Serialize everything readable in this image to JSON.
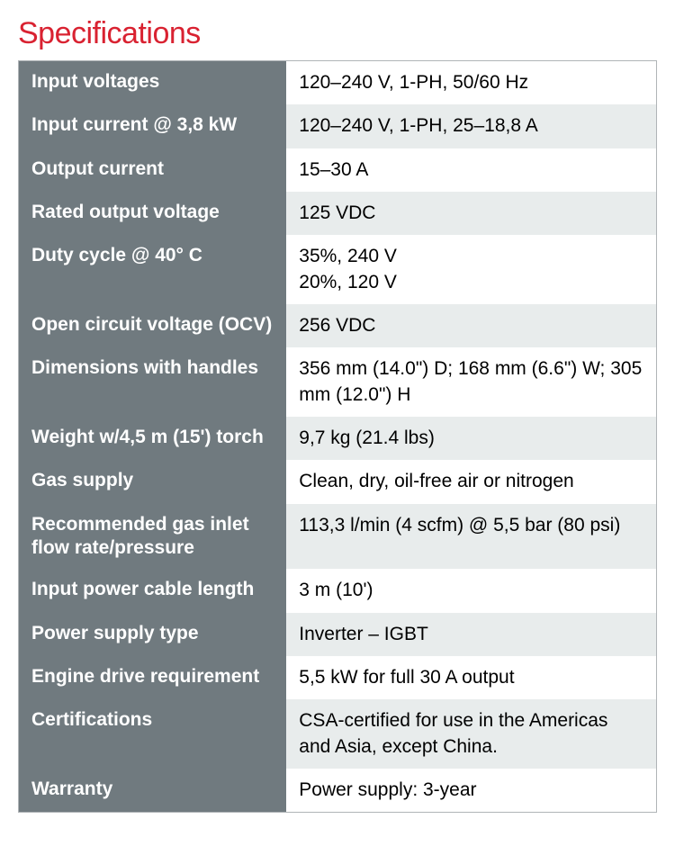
{
  "title": "Specifications",
  "colors": {
    "title": "#d92231",
    "label_bg": "#707a7f",
    "label_text": "#ffffff",
    "value_text": "#000000",
    "row_odd_bg": "#ffffff",
    "row_even_bg": "#e8ecec",
    "border": "#b0b4b7"
  },
  "typography": {
    "title_fontsize": 34,
    "cell_fontsize": 21,
    "label_fontweight": 700
  },
  "layout": {
    "label_col_width_pct": 42,
    "value_col_width_pct": 58
  },
  "rows": [
    {
      "label": "Input voltages",
      "value": "120–240 V, 1-PH, 50/60 Hz"
    },
    {
      "label": "Input current @ 3,8 kW",
      "value": "120–240 V, 1-PH, 25–18,8 A"
    },
    {
      "label": "Output current",
      "value": "15–30 A"
    },
    {
      "label": "Rated output voltage",
      "value": "125 VDC"
    },
    {
      "label": "Duty cycle @ 40° C",
      "value": "35%, 240 V\n20%, 120 V"
    },
    {
      "label": "Open circuit voltage (OCV)",
      "value": "256 VDC"
    },
    {
      "label": "Dimensions with handles",
      "value": "356 mm (14.0\") D; 168 mm (6.6\") W; 305 mm (12.0\") H"
    },
    {
      "label": "Weight w/4,5 m (15') torch",
      "value": "9,7 kg (21.4 lbs)"
    },
    {
      "label": "Gas supply",
      "value": "Clean, dry, oil-free air or nitrogen"
    },
    {
      "label": "Recommended gas inlet flow rate/pressure",
      "value": "113,3 l/min (4 scfm) @ 5,5 bar (80 psi)"
    },
    {
      "label": "Input power cable length",
      "value": "3 m (10')"
    },
    {
      "label": "Power supply type",
      "value": "Inverter – IGBT"
    },
    {
      "label": "Engine drive requirement",
      "value": "5,5 kW for full 30 A output"
    },
    {
      "label": "Certifications",
      "value": "CSA-certified for use in the Americas and Asia, except China."
    },
    {
      "label": "Warranty",
      "value": "Power supply: 3-year"
    }
  ]
}
